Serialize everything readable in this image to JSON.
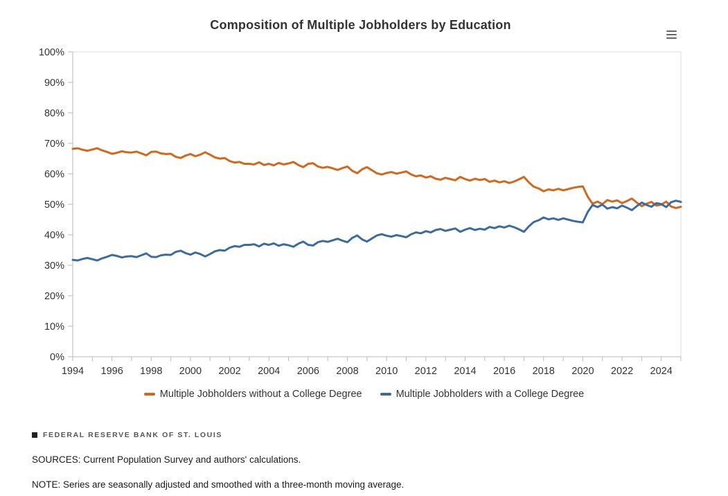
{
  "chart": {
    "title": "Composition of Multiple Jobholders by Education",
    "menu_icon": "hamburger-icon"
  },
  "chart_data": {
    "type": "line",
    "title": "Composition of Multiple Jobholders by Education",
    "xlabel": "",
    "ylabel": "",
    "grid": false,
    "legend_position": "bottom",
    "xlim": [
      1994,
      2025
    ],
    "ylim": [
      0,
      100
    ],
    "x_start": 1994,
    "x_step": 0.25,
    "x_tick_labels": [
      1994,
      1996,
      1998,
      2000,
      2002,
      2004,
      2006,
      2008,
      2010,
      2012,
      2014,
      2016,
      2018,
      2020,
      2022,
      2024
    ],
    "x_minor_tick_step": 1,
    "y_tick_step": 10,
    "y_tick_suffix": "%",
    "axis_color": "#b9b9b9",
    "border_color": "#dcdcdc",
    "series": [
      {
        "name": "Multiple Jobholders without a College Degree",
        "key": "without-college-degree",
        "color": "#d3671a",
        "values": [
          68.2,
          68.4,
          67.9,
          67.6,
          68.0,
          68.4,
          67.7,
          67.2,
          66.6,
          66.9,
          67.4,
          67.1,
          67.0,
          67.3,
          66.7,
          66.1,
          67.2,
          67.3,
          66.7,
          66.5,
          66.6,
          65.6,
          65.2,
          66.0,
          66.5,
          65.8,
          66.3,
          67.1,
          66.3,
          65.4,
          65.0,
          65.2,
          64.2,
          63.7,
          63.9,
          63.3,
          63.3,
          63.1,
          63.8,
          62.9,
          63.3,
          62.8,
          63.6,
          63.1,
          63.4,
          63.9,
          62.9,
          62.2,
          63.3,
          63.5,
          62.4,
          62.0,
          62.3,
          61.8,
          61.3,
          61.9,
          62.4,
          61.0,
          60.2,
          61.5,
          62.2,
          61.2,
          60.2,
          59.8,
          60.3,
          60.6,
          60.1,
          60.4,
          60.8,
          59.8,
          59.2,
          59.5,
          58.8,
          59.2,
          58.4,
          58.1,
          58.7,
          58.3,
          57.9,
          59.0,
          58.3,
          57.8,
          58.4,
          58.0,
          58.3,
          57.4,
          57.8,
          57.2,
          57.6,
          57.0,
          57.5,
          58.2,
          59.0,
          57.2,
          55.8,
          55.2,
          54.3,
          54.9,
          54.6,
          55.1,
          54.6,
          55.0,
          55.4,
          55.7,
          55.9,
          52.5,
          50.2,
          50.9,
          50.1,
          51.4,
          50.9,
          51.3,
          50.4,
          51.1,
          51.9,
          50.6,
          49.4,
          50.2,
          50.8,
          49.6,
          49.9,
          50.9,
          49.3,
          48.8,
          49.2
        ]
      },
      {
        "name": "Multiple Jobholders with a College Degree",
        "key": "with-college-degree",
        "color": "#3c6c9d",
        "values": [
          31.8,
          31.6,
          32.1,
          32.4,
          32.0,
          31.6,
          32.3,
          32.8,
          33.4,
          33.1,
          32.6,
          32.9,
          33.0,
          32.7,
          33.3,
          33.9,
          32.8,
          32.7,
          33.3,
          33.5,
          33.4,
          34.4,
          34.8,
          34.0,
          33.5,
          34.2,
          33.7,
          32.9,
          33.7,
          34.6,
          35.0,
          34.8,
          35.8,
          36.3,
          36.1,
          36.7,
          36.7,
          36.9,
          36.2,
          37.1,
          36.7,
          37.2,
          36.4,
          36.9,
          36.6,
          36.1,
          37.1,
          37.8,
          36.7,
          36.5,
          37.6,
          38.0,
          37.7,
          38.2,
          38.7,
          38.1,
          37.6,
          39.0,
          39.8,
          38.5,
          37.8,
          38.8,
          39.8,
          40.2,
          39.7,
          39.4,
          39.9,
          39.6,
          39.2,
          40.2,
          40.8,
          40.5,
          41.2,
          40.8,
          41.6,
          41.9,
          41.3,
          41.7,
          42.1,
          41.0,
          41.7,
          42.2,
          41.6,
          42.0,
          41.7,
          42.6,
          42.2,
          42.8,
          42.4,
          43.0,
          42.5,
          41.8,
          41.0,
          42.8,
          44.2,
          44.8,
          45.7,
          45.1,
          45.4,
          44.9,
          45.4,
          45.0,
          44.6,
          44.3,
          44.1,
          47.5,
          49.8,
          49.1,
          49.9,
          48.6,
          49.1,
          48.7,
          49.6,
          48.9,
          48.1,
          49.4,
          50.6,
          49.8,
          49.2,
          50.4,
          50.1,
          49.1,
          50.7,
          51.2,
          50.8
        ]
      }
    ]
  },
  "footer": {
    "brand": "FEDERAL RESERVE BANK OF ST. LOUIS",
    "sources": "SOURCES: Current Population Survey and authors' calculations.",
    "note": "NOTE: Series are seasonally adjusted and smoothed with a three-month moving average."
  }
}
